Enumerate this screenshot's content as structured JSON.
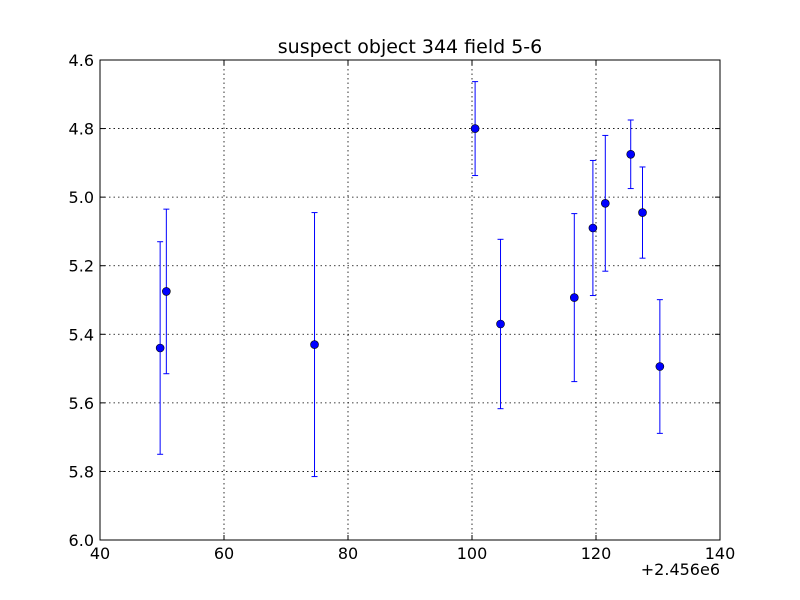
{
  "chart_data": {
    "type": "scatter",
    "title": "suspect object 344 field 5-6",
    "xlabel": "",
    "ylabel": "",
    "x_offset_label": "+2.456e6",
    "xlim": [
      40,
      140
    ],
    "ylim": [
      4.6,
      6.0
    ],
    "y_inverted": true,
    "grid": true,
    "x_ticks": [
      "40",
      "60",
      "80",
      "100",
      "120",
      "140"
    ],
    "y_ticks": [
      "4.6",
      "4.8",
      "5.0",
      "5.2",
      "5.4",
      "5.6",
      "5.8",
      "6.0"
    ],
    "marker_color": "#0000ff",
    "errorbar_color": "#0000ff",
    "series": [
      {
        "points": [
          {
            "x": 49.7,
            "y": 5.44,
            "yerr": 0.31
          },
          {
            "x": 50.7,
            "y": 5.275,
            "yerr": 0.24
          },
          {
            "x": 74.6,
            "y": 5.43,
            "yerr": 0.385
          },
          {
            "x": 100.5,
            "y": 4.8,
            "yerr": 0.137
          },
          {
            "x": 104.6,
            "y": 5.37,
            "yerr": 0.247
          },
          {
            "x": 116.5,
            "y": 5.293,
            "yerr": 0.245
          },
          {
            "x": 119.5,
            "y": 5.09,
            "yerr": 0.197
          },
          {
            "x": 121.5,
            "y": 5.018,
            "yerr": 0.198
          },
          {
            "x": 125.6,
            "y": 4.875,
            "yerr": 0.1
          },
          {
            "x": 127.5,
            "y": 5.045,
            "yerr": 0.133
          },
          {
            "x": 130.3,
            "y": 5.494,
            "yerr": 0.195
          }
        ]
      }
    ]
  }
}
